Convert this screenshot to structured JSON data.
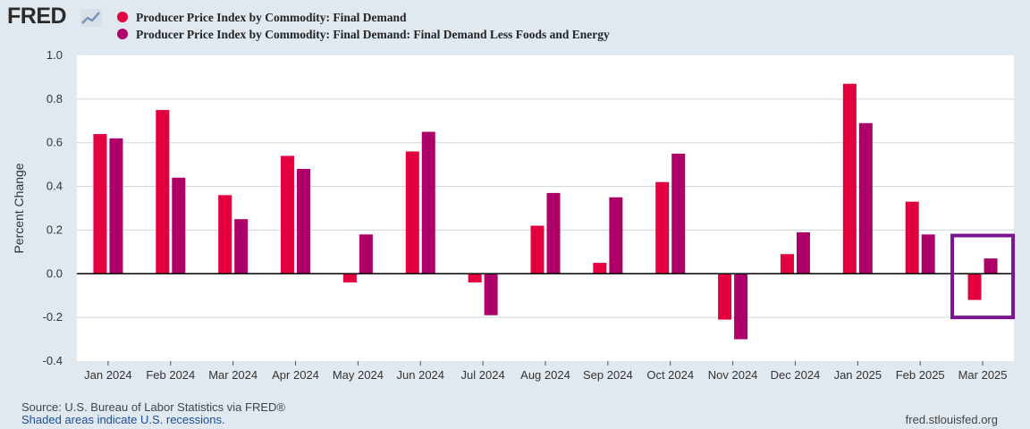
{
  "header": {
    "logo_text": "FRED"
  },
  "legend": [
    {
      "label": "Producer Price Index by Commodity: Final Demand",
      "color": "#e4003e"
    },
    {
      "label": "Producer Price Index by Commodity: Final Demand: Final Demand Less Foods and Energy",
      "color": "#ad0068"
    }
  ],
  "chart_data": {
    "type": "bar",
    "ylabel": "Percent Change",
    "ylim": [
      -0.4,
      1.0
    ],
    "yticks": [
      "1.0",
      "0.8",
      "0.6",
      "0.4",
      "0.2",
      "0.0",
      "-0.2",
      "-0.4"
    ],
    "categories": [
      "Jan 2024",
      "Feb 2024",
      "Mar 2024",
      "Apr 2024",
      "May 2024",
      "Jun 2024",
      "Jul 2024",
      "Aug 2024",
      "Sep 2024",
      "Oct 2024",
      "Nov 2024",
      "Dec 2024",
      "Jan 2025",
      "Feb 2025",
      "Mar 2025"
    ],
    "series": [
      {
        "name": "Producer Price Index by Commodity: Final Demand",
        "color": "#e4003e",
        "values": [
          0.64,
          0.75,
          0.36,
          0.54,
          -0.04,
          0.56,
          -0.04,
          0.22,
          0.05,
          0.42,
          -0.21,
          0.09,
          0.87,
          0.33,
          -0.12
        ]
      },
      {
        "name": "Producer Price Index by Commodity: Final Demand: Final Demand Less Foods and Energy",
        "color": "#ad0068",
        "values": [
          0.62,
          0.44,
          0.25,
          0.48,
          0.18,
          0.65,
          -0.19,
          0.37,
          0.35,
          0.55,
          -0.3,
          0.19,
          0.69,
          0.18,
          0.07
        ]
      }
    ],
    "grid": true,
    "highlight": {
      "category": "Mar 2025",
      "color": "#7a1590"
    }
  },
  "footer": {
    "source": "Source: U.S. Bureau of Labor Statistics via FRED®",
    "shaded_note": "Shaded areas indicate U.S. recessions.",
    "url": "fred.stlouisfed.org"
  }
}
